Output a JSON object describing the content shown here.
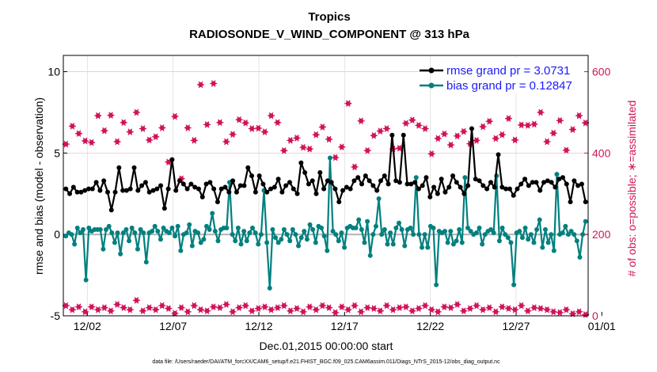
{
  "chart_data": {
    "type": "line",
    "title": "Tropics",
    "subtitle": "RADIOSONDE_V_WIND_COMPONENT @ 313 hPa",
    "xlabel": "Dec.01,2015 00:00:00 start",
    "ylabel": "rmse and bias (model - observation)",
    "y2label": "# of obs: o=possible; ∗=assimilated",
    "footnote": "data file: /Users/raeder/DAI/ATM_forcXX/CAM6_setup/f.e21.FHIST_BGC.f09_025.CAM6assim.011/Diags_NTrS_2015-12/obs_diag_output.nc",
    "xlim": [
      0.6,
      31.2
    ],
    "ylim": [
      -5,
      11
    ],
    "y2lim": [
      0,
      640
    ],
    "x_ticks": [
      2,
      7,
      12,
      17,
      22,
      27,
      32
    ],
    "x_tick_labels": [
      "12/02",
      "12/07",
      "12/12",
      "12/17",
      "12/22",
      "12/27",
      "01/01"
    ],
    "y_ticks": [
      -5,
      0,
      5,
      10
    ],
    "y_tick_labels": [
      "-5",
      "0",
      "5",
      "10"
    ],
    "y2_ticks": [
      0,
      200,
      400,
      600
    ],
    "y2_tick_labels": [
      "0",
      "200",
      "400",
      "600"
    ],
    "colors": {
      "rmse": "#000000",
      "bias": "#00807f",
      "obs": "#d1145a",
      "grid": "#cccccc",
      "legend_text": "#1a1aff"
    },
    "series": [
      {
        "name": "rmse grand pr = 3.0731",
        "axis": "left",
        "values": [
          2.8,
          2.5,
          2.9,
          2.6,
          2.6,
          2.7,
          2.8,
          2.8,
          3.2,
          2.7,
          3.3,
          2.6,
          1.5,
          2.6,
          4.1,
          2.7,
          2.7,
          2.8,
          4.1,
          2.7,
          3.0,
          3.2,
          2.6,
          2.7,
          2.8,
          3.0,
          1.6,
          2.8,
          4.6,
          2.7,
          3.3,
          3.1,
          2.8,
          3.1,
          2.9,
          2.8,
          2.3,
          3.1,
          3.2,
          2.8,
          2.0,
          2.8,
          2.9,
          2.6,
          3.3,
          2.6,
          3.0,
          3.0,
          4.1,
          3.6,
          2.6,
          3.6,
          3.1,
          2.6,
          2.8,
          2.9,
          3.4,
          2.6,
          3.0,
          3.2,
          2.8,
          2.5,
          4.4,
          3.8,
          3.1,
          3.3,
          2.5,
          3.8,
          2.8,
          3.3,
          3.2,
          2.8,
          2.0,
          2.7,
          2.9,
          2.8,
          3.3,
          3.5,
          3.1,
          3.6,
          3.3,
          3.0,
          2.7,
          3.3,
          3.6,
          3.1,
          6.1,
          3.3,
          3.2,
          6.1,
          3.1,
          3.1,
          3.2,
          2.8,
          3.0,
          3.5,
          2.3,
          2.9,
          2.5,
          3.4,
          2.6,
          2.9,
          3.6,
          3.2,
          2.9,
          2.5,
          3.0,
          6.5,
          3.4,
          3.3,
          3.0,
          2.8,
          3.2,
          2.9,
          4.9,
          2.9,
          2.8,
          2.8,
          2.4,
          2.8,
          3.1,
          3.4,
          3.0,
          3.2,
          3.2,
          2.7,
          3.2,
          3.3,
          3.2,
          2.9,
          3.4,
          3.5,
          3.1,
          2.0,
          3.3,
          3.0,
          3.1,
          2.0
        ]
      },
      {
        "name": "bias grand pr = 0.12847",
        "axis": "left",
        "values": [
          -0.1,
          0.1,
          0.0,
          -0.6,
          0.4,
          0.1,
          0.3,
          -2.8,
          0.4,
          0.2,
          0.3,
          0.3,
          0.3,
          -0.9,
          0.3,
          0.5,
          0.1,
          -0.5,
          0.1,
          -1.2,
          0.1,
          0.3,
          -0.4,
          0.4,
          0.1,
          -0.9,
          0.3,
          0.1,
          -1.7,
          0.1,
          0.2,
          0.5,
          0.2,
          -0.3,
          0.4,
          0.2,
          0.1,
          0.4,
          -0.1,
          0.5,
          -1.0,
          0.0,
          0.1,
          0.6,
          -0.7,
          0.2,
          0.1,
          -0.5,
          -0.3,
          0.5,
          0.3,
          1.3,
          0.2,
          -0.4,
          0.3,
          0.4,
          0.4,
          3.2,
          0.0,
          -0.4,
          0.4,
          -0.6,
          0.2,
          -0.4,
          0.1,
          0.4,
          0.1,
          -0.6,
          0.0,
          2.7,
          -0.5,
          -3.3,
          0.3,
          -0.2,
          -0.5,
          -0.3,
          0.3,
          0.0,
          -0.4,
          0.3,
          0.0,
          -0.7,
          -0.2,
          0.2,
          -0.3,
          0.6,
          0.3,
          -0.5,
          0.5,
          0.4,
          -0.1,
          -1.0,
          4.7,
          0.2,
          0.0,
          -0.4,
          0.1,
          -0.8,
          0.4,
          0.5,
          0.4,
          0.4,
          0.9,
          0.3,
          -0.5,
          0.8,
          -1.3,
          0.0,
          0.5,
          2.2,
          0.0,
          0.3,
          -0.6,
          0.1,
          -0.6,
          0.4,
          0.7,
          0.3,
          -0.7,
          0.3,
          0.4,
          0.0,
          3.5,
          0.0,
          -0.8,
          0.0,
          -0.8,
          0.5,
          0.4,
          -3.1,
          0.2,
          0.1,
          0.2,
          -0.5,
          0.2,
          -0.6,
          -0.4,
          0.3,
          -0.5,
          3.5,
          0.4,
          0.2,
          0.0,
          0.1,
          0.4,
          -0.6,
          0.0,
          0.2,
          0.3,
          0.1,
          3.6,
          -0.4,
          0.4,
          0.0,
          -0.2,
          -0.5,
          -3.1,
          0.1,
          0.2,
          -0.2,
          0.4,
          -0.3,
          0.0,
          -0.5,
          0.3,
          0.9,
          -0.8,
          0.3,
          -0.5,
          0.0,
          -1.0,
          3.7,
          0.0,
          0.1,
          0.5,
          0.0,
          0.2,
          0.0,
          -0.4,
          -1.4,
          0.0,
          0.8
        ]
      },
      {
        "name": "# obs possible",
        "axis": "right",
        "values": [
          422,
          466,
          448,
          430,
          426,
          492,
          455,
          493,
          428,
          475,
          452,
          500,
          460,
          432,
          440,
          462,
          378,
          490,
          337,
          462,
          431,
          568,
          470,
          571,
          475,
          428,
          446,
          482,
          474,
          460,
          461,
          452,
          492,
          475,
          406,
          431,
          437,
          414,
          410,
          445,
          464,
          434,
          389,
          415,
          522,
          366,
          479,
          406,
          443,
          454,
          460,
          410,
          412,
          473,
          481,
          468,
          460,
          398,
          436,
          447,
          420,
          442,
          453,
          423,
          431,
          465,
          478,
          436,
          445,
          485,
          432,
          469,
          468,
          471,
          500,
          428,
          449,
          480,
          407,
          458,
          492,
          474
        ]
      },
      {
        "name": "# obs assimilated",
        "axis": "right",
        "values": [
          25,
          15,
          22,
          10,
          22,
          15,
          20,
          12,
          28,
          20,
          15,
          38,
          12,
          20,
          15,
          25,
          18,
          6,
          20,
          10,
          25,
          15,
          12,
          22,
          20,
          28,
          10,
          20,
          25,
          12,
          18,
          22,
          15,
          20,
          25,
          12,
          18,
          10,
          22,
          15,
          25,
          20,
          8,
          22,
          15,
          25,
          10,
          20,
          18,
          12,
          25,
          15,
          20,
          22,
          12,
          18,
          25,
          15,
          10,
          22,
          20,
          28,
          12,
          18,
          25,
          15,
          20,
          10,
          22,
          18,
          15,
          25,
          12,
          20,
          18,
          15,
          10,
          8,
          15,
          5,
          10,
          3
        ]
      }
    ]
  }
}
